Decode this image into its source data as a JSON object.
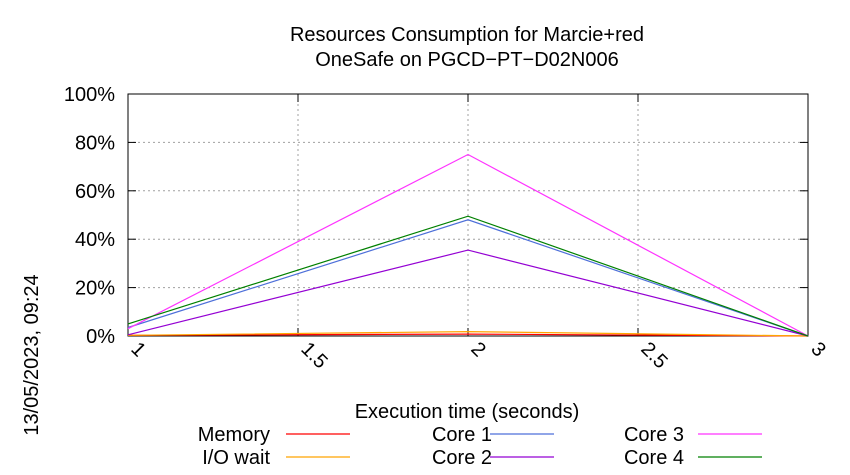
{
  "side_label": "13/05/2023, 09:24",
  "chart_data": {
    "type": "line",
    "title": "Resources Consumption for Marcie+red",
    "subtitle": "OneSafe on PGCD−PT−D02N006",
    "xlabel": "Execution time (seconds)",
    "ylabel": "",
    "xlim": [
      1,
      3
    ],
    "ylim": [
      0,
      100
    ],
    "xticks": [
      1,
      1.5,
      2,
      2.5,
      3
    ],
    "xtick_labels": [
      "1",
      "1.5",
      "2",
      "2.5",
      "3"
    ],
    "yticks": [
      0,
      20,
      40,
      60,
      80,
      100
    ],
    "ytick_labels": [
      "0%",
      "20%",
      "40%",
      "60%",
      "80%",
      "100%"
    ],
    "grid": true,
    "legend_position": "bottom",
    "x": [
      1,
      2,
      3
    ],
    "series": [
      {
        "name": "Memory",
        "color": "#ff0000",
        "values": [
          0.3,
          0.8,
          0
        ]
      },
      {
        "name": "I/O wait",
        "color": "#ffa500",
        "values": [
          0.3,
          1.8,
          0
        ]
      },
      {
        "name": "Core 1",
        "color": "#4d6fd9",
        "values": [
          3.5,
          48,
          0
        ]
      },
      {
        "name": "Core 2",
        "color": "#9400d3",
        "values": [
          0.5,
          35.5,
          0
        ]
      },
      {
        "name": "Core 3",
        "color": "#ff33ff",
        "values": [
          3,
          75,
          0
        ]
      },
      {
        "name": "Core 4",
        "color": "#008000",
        "values": [
          5,
          49.5,
          0
        ]
      }
    ]
  }
}
